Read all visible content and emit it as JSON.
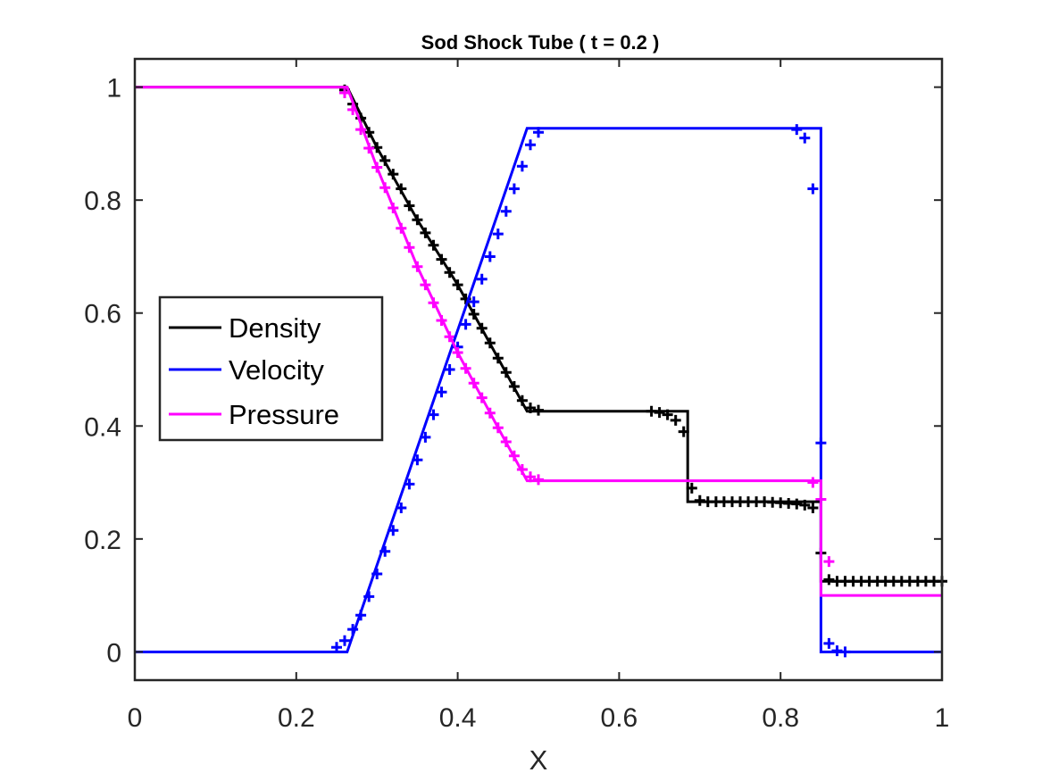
{
  "chart_data": {
    "type": "line",
    "title": "Sod Shock Tube ( t = 0.2 )",
    "xlabel": "X",
    "ylabel": "",
    "xlim": [
      0,
      1
    ],
    "ylim": [
      -0.05,
      1.05
    ],
    "x_ticks": [
      0,
      0.2,
      0.4,
      0.6,
      0.8,
      1
    ],
    "x_tick_labels": [
      "0",
      "0.2",
      "0.4",
      "0.6",
      "0.8",
      "1"
    ],
    "y_ticks": [
      0,
      0.2,
      0.4,
      0.6,
      0.8,
      1
    ],
    "y_tick_labels": [
      "0",
      "0.2",
      "0.4",
      "0.6",
      "0.8",
      "1"
    ],
    "grid": false,
    "legend_position": "left",
    "series": [
      {
        "name": "Density",
        "color": "#000000",
        "style": "line",
        "x": [
          0,
          0.263,
          0.3,
          0.35,
          0.4,
          0.45,
          0.486,
          0.685,
          0.685,
          0.85,
          0.85,
          1
        ],
        "y": [
          1,
          1,
          0.893,
          0.765,
          0.65,
          0.52,
          0.426,
          0.426,
          0.266,
          0.266,
          0.125,
          0.125
        ]
      },
      {
        "name": "Velocity",
        "color": "#0000ff",
        "style": "line",
        "x": [
          0,
          0.263,
          0.486,
          0.85,
          0.85,
          1
        ],
        "y": [
          0,
          0,
          0.927,
          0.927,
          0,
          0
        ]
      },
      {
        "name": "Pressure",
        "color": "#ff00ff",
        "style": "line",
        "x": [
          0,
          0.263,
          0.3,
          0.35,
          0.4,
          0.45,
          0.486,
          0.85,
          0.85,
          1
        ],
        "y": [
          1,
          1,
          0.858,
          0.682,
          0.53,
          0.397,
          0.303,
          0.303,
          0.1,
          0.1
        ]
      },
      {
        "name": "",
        "color": "#000000",
        "style": "markers",
        "x": [
          0.26,
          0.27,
          0.28,
          0.29,
          0.3,
          0.31,
          0.32,
          0.33,
          0.34,
          0.35,
          0.36,
          0.37,
          0.38,
          0.39,
          0.4,
          0.41,
          0.42,
          0.43,
          0.44,
          0.45,
          0.46,
          0.47,
          0.48,
          0.49,
          0.5,
          0.64,
          0.65,
          0.66,
          0.67,
          0.68,
          0.69,
          0.7,
          0.71,
          0.72,
          0.73,
          0.74,
          0.75,
          0.76,
          0.77,
          0.78,
          0.79,
          0.8,
          0.81,
          0.82,
          0.83,
          0.84,
          0.85,
          0.86,
          0.87,
          0.88,
          0.89,
          0.9,
          0.91,
          0.92,
          0.93,
          0.94,
          0.95,
          0.96,
          0.97,
          0.98,
          0.99,
          1.0
        ],
        "y": [
          0.995,
          0.97,
          0.945,
          0.92,
          0.893,
          0.87,
          0.846,
          0.82,
          0.79,
          0.765,
          0.742,
          0.72,
          0.695,
          0.672,
          0.65,
          0.625,
          0.598,
          0.573,
          0.547,
          0.52,
          0.495,
          0.47,
          0.445,
          0.432,
          0.428,
          0.426,
          0.424,
          0.42,
          0.41,
          0.39,
          0.29,
          0.268,
          0.266,
          0.266,
          0.266,
          0.266,
          0.266,
          0.266,
          0.266,
          0.266,
          0.265,
          0.264,
          0.263,
          0.262,
          0.26,
          0.255,
          0.175,
          0.128,
          0.125,
          0.125,
          0.125,
          0.125,
          0.125,
          0.125,
          0.125,
          0.125,
          0.125,
          0.125,
          0.125,
          0.125,
          0.125,
          0.125
        ]
      },
      {
        "name": "",
        "color": "#0000ff",
        "style": "markers",
        "x": [
          0.25,
          0.26,
          0.27,
          0.28,
          0.29,
          0.3,
          0.31,
          0.32,
          0.33,
          0.34,
          0.35,
          0.36,
          0.37,
          0.38,
          0.39,
          0.4,
          0.41,
          0.42,
          0.43,
          0.44,
          0.45,
          0.46,
          0.47,
          0.48,
          0.49,
          0.5,
          0.82,
          0.83,
          0.84,
          0.85,
          0.86,
          0.87,
          0.88
        ],
        "y": [
          0.008,
          0.02,
          0.04,
          0.065,
          0.098,
          0.138,
          0.178,
          0.215,
          0.255,
          0.297,
          0.34,
          0.38,
          0.42,
          0.46,
          0.5,
          0.54,
          0.58,
          0.62,
          0.66,
          0.7,
          0.74,
          0.78,
          0.82,
          0.86,
          0.898,
          0.92,
          0.925,
          0.91,
          0.82,
          0.37,
          0.015,
          0.002,
          0
        ]
      },
      {
        "name": "",
        "color": "#ff00ff",
        "style": "markers",
        "x": [
          0.26,
          0.27,
          0.28,
          0.29,
          0.3,
          0.31,
          0.32,
          0.33,
          0.34,
          0.35,
          0.36,
          0.37,
          0.38,
          0.39,
          0.4,
          0.41,
          0.42,
          0.43,
          0.44,
          0.45,
          0.46,
          0.47,
          0.48,
          0.49,
          0.5,
          0.84,
          0.85,
          0.86
        ],
        "y": [
          0.99,
          0.96,
          0.925,
          0.892,
          0.858,
          0.822,
          0.786,
          0.75,
          0.716,
          0.682,
          0.65,
          0.618,
          0.587,
          0.558,
          0.53,
          0.502,
          0.476,
          0.45,
          0.423,
          0.397,
          0.372,
          0.347,
          0.323,
          0.31,
          0.305,
          0.3,
          0.27,
          0.16
        ]
      }
    ]
  }
}
